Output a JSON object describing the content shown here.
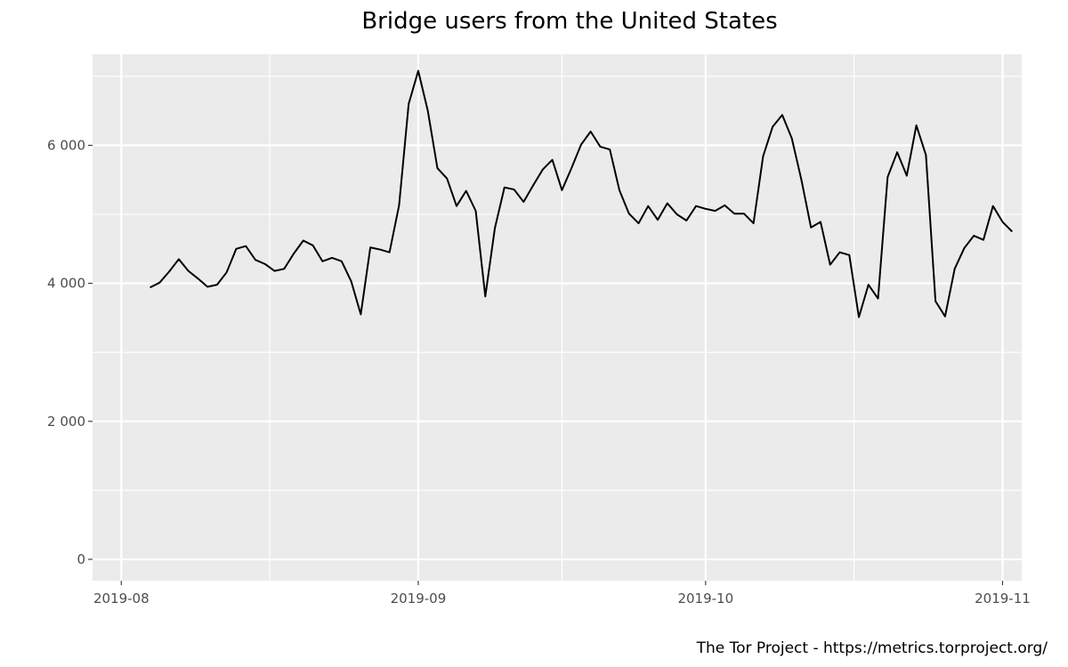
{
  "chart_data": {
    "type": "line",
    "title": "Bridge users from the United States",
    "caption": "The Tor Project - https://metrics.torproject.org/",
    "xlabel": "",
    "ylabel": "",
    "ylim": [
      -310,
      7320
    ],
    "xlim": [
      "2019-07-29",
      "2019-11-03"
    ],
    "grid": true,
    "y_ticks": [
      {
        "value": 0,
        "label": "0"
      },
      {
        "value": 2000,
        "label": "2 000"
      },
      {
        "value": 4000,
        "label": "4 000"
      },
      {
        "value": 6000,
        "label": "6 000"
      }
    ],
    "x_ticks": [
      {
        "value": "2019-08-01",
        "label": "2019-08"
      },
      {
        "value": "2019-09-01",
        "label": "2019-09"
      },
      {
        "value": "2019-10-01",
        "label": "2019-10"
      },
      {
        "value": "2019-11-01",
        "label": "2019-11"
      }
    ],
    "series": [
      {
        "color": "#000000",
        "x": [
          "2019-08-04",
          "2019-08-05",
          "2019-08-06",
          "2019-08-07",
          "2019-08-08",
          "2019-08-09",
          "2019-08-10",
          "2019-08-11",
          "2019-08-12",
          "2019-08-13",
          "2019-08-14",
          "2019-08-15",
          "2019-08-16",
          "2019-08-17",
          "2019-08-18",
          "2019-08-19",
          "2019-08-20",
          "2019-08-21",
          "2019-08-22",
          "2019-08-23",
          "2019-08-24",
          "2019-08-25",
          "2019-08-26",
          "2019-08-27",
          "2019-08-28",
          "2019-08-29",
          "2019-08-30",
          "2019-08-31",
          "2019-09-01",
          "2019-09-02",
          "2019-09-03",
          "2019-09-04",
          "2019-09-05",
          "2019-09-06",
          "2019-09-07",
          "2019-09-08",
          "2019-09-09",
          "2019-09-10",
          "2019-09-11",
          "2019-09-12",
          "2019-09-13",
          "2019-09-14",
          "2019-09-15",
          "2019-09-16",
          "2019-09-17",
          "2019-09-18",
          "2019-09-19",
          "2019-09-20",
          "2019-09-21",
          "2019-09-22",
          "2019-09-23",
          "2019-09-24",
          "2019-09-25",
          "2019-09-26",
          "2019-09-27",
          "2019-09-28",
          "2019-09-29",
          "2019-09-30",
          "2019-10-01",
          "2019-10-02",
          "2019-10-03",
          "2019-10-04",
          "2019-10-05",
          "2019-10-06",
          "2019-10-07",
          "2019-10-08",
          "2019-10-09",
          "2019-10-10",
          "2019-10-11",
          "2019-10-12",
          "2019-10-13",
          "2019-10-14",
          "2019-10-15",
          "2019-10-16",
          "2019-10-17",
          "2019-10-18",
          "2019-10-19",
          "2019-10-20",
          "2019-10-21",
          "2019-10-22",
          "2019-10-23",
          "2019-10-24",
          "2019-10-25",
          "2019-10-26",
          "2019-10-27",
          "2019-10-28",
          "2019-10-29",
          "2019-10-30",
          "2019-10-31",
          "2019-11-01",
          "2019-11-02"
        ],
        "values": [
          3940,
          4010,
          4170,
          4350,
          4180,
          4070,
          3950,
          3980,
          4160,
          4500,
          4540,
          4340,
          4280,
          4180,
          4210,
          4430,
          4620,
          4550,
          4320,
          4370,
          4320,
          4030,
          3550,
          4520,
          4490,
          4450,
          5130,
          6600,
          7080,
          6500,
          5670,
          5520,
          5120,
          5340,
          5050,
          3810,
          4800,
          5390,
          5360,
          5180,
          5420,
          5650,
          5790,
          5350,
          5670,
          6010,
          6200,
          5980,
          5940,
          5350,
          5010,
          4870,
          5120,
          4920,
          5160,
          5000,
          4910,
          5120,
          5080,
          5050,
          5130,
          5010,
          5010,
          4870,
          5840,
          6270,
          6440,
          6100,
          5500,
          4810,
          4890,
          4270,
          4450,
          4410,
          3510,
          3980,
          3780,
          5540,
          5900,
          5560,
          6290,
          5860,
          3740,
          3520,
          4210,
          4510,
          4690,
          4630,
          5120,
          4890,
          4750
        ]
      }
    ]
  }
}
